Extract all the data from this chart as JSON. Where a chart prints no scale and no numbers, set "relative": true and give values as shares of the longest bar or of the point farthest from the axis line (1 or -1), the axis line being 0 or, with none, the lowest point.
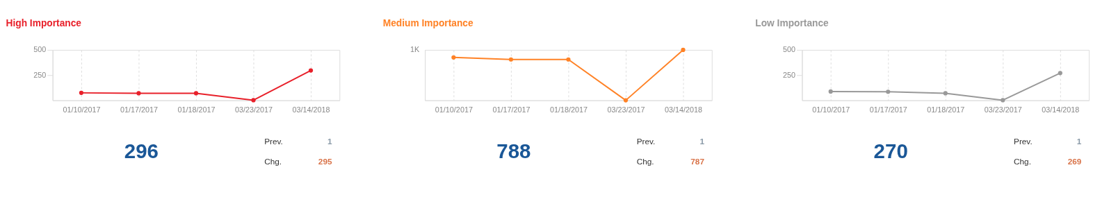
{
  "chart_data": [
    {
      "type": "line",
      "title": "High Importance",
      "categories": [
        "01/10/2017",
        "01/17/2017",
        "01/18/2017",
        "03/23/2017",
        "03/14/2018"
      ],
      "series": [
        {
          "color": "#e8202a",
          "values": [
            74,
            70,
            70,
            1,
            296
          ]
        }
      ],
      "ylim": [
        0,
        500
      ],
      "yticks": [
        250,
        500
      ],
      "grid": "x",
      "marker": "circle",
      "line_style": "solid",
      "annotations": [
        "296",
        "Prev.",
        "1",
        "Chg.",
        "295"
      ]
    },
    {
      "type": "line",
      "title": "Medium Importance",
      "categories": [
        "01/10/2017",
        "01/17/2017",
        "01/18/2017",
        "03/23/2017",
        "03/14/2018"
      ],
      "series": [
        {
          "color": "#ff8226",
          "values": [
            0.85,
            0.81,
            0.81,
            0,
            1
          ]
        }
      ],
      "relative": true,
      "grid": "x",
      "marker": "circle",
      "line_style": "solid",
      "annotations": [
        "788",
        "Prev.",
        "1",
        "Chg.",
        "787",
        "1K"
      ]
    },
    {
      "type": "line",
      "title": "Low Importance",
      "categories": [
        "01/10/2017",
        "01/17/2017",
        "01/18/2017",
        "03/23/2017",
        "03/14/2018"
      ],
      "series": [
        {
          "color": "#999999",
          "values": [
            87,
            85,
            70,
            1,
            270
          ]
        }
      ],
      "ylim": [
        0,
        500
      ],
      "yticks": [
        250,
        500
      ],
      "grid": "x",
      "marker": "circle",
      "line_style": "solid",
      "annotations": [
        "270",
        "Prev.",
        "1",
        "Chg.",
        "269"
      ]
    }
  ]
}
